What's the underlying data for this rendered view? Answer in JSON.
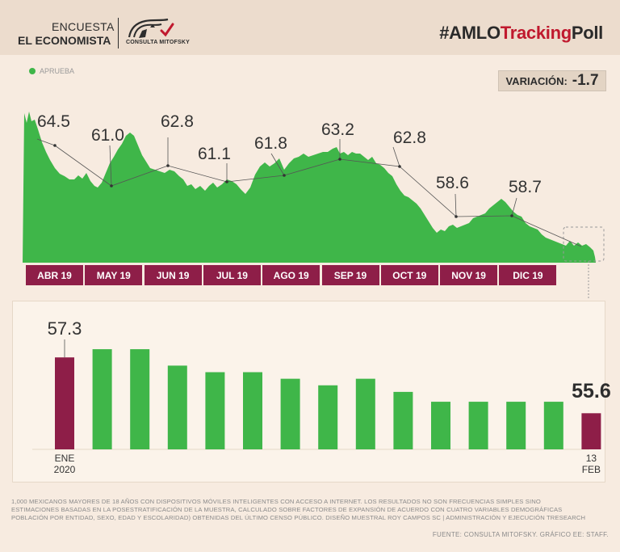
{
  "header": {
    "survey_top": "ENCUESTA",
    "survey_bottom": "EL ECONOMISTA",
    "logo_text": "CONSULTA MITOFSKY",
    "hashtag_prefix": "#AMLO",
    "hashtag_red": "Tracking",
    "hashtag_suffix": "Poll"
  },
  "legend": {
    "label": "APRUEBA",
    "color": "#3fb649"
  },
  "variation": {
    "label": "VARIACIÓN:",
    "value": "-1.7"
  },
  "colors": {
    "green": "#3fb649",
    "maroon": "#8e1e48",
    "background": "#f7ebe0"
  },
  "chart_data": [
    {
      "type": "area",
      "series": [
        {
          "name": "APRUEBA",
          "x": [
            "ABR 19",
            "MAY 19",
            "JUN 19",
            "JUL 19",
            "AGO 19",
            "SEP 19",
            "OCT 19",
            "NOV 19",
            "DIC 19"
          ],
          "values": [
            64.5,
            61.0,
            62.8,
            61.1,
            61.8,
            63.2,
            62.8,
            58.6,
            58.7
          ]
        }
      ],
      "annotations": [
        "64.5",
        "61.0",
        "62.8",
        "61.1",
        "61.8",
        "63.2",
        "62.8",
        "58.6",
        "58.7"
      ],
      "month_labels": [
        "ABR 19",
        "MAY 19",
        "JUN 19",
        "JUL 19",
        "AGO 19",
        "SEP 19",
        "OCT 19",
        "NOV 19",
        "DIC 19"
      ],
      "grid": false
    },
    {
      "type": "bar",
      "categories": [
        "ENE 2020",
        "",
        "",
        "",
        "",
        "",
        "",
        "",
        "",
        "",
        "",
        "",
        "",
        "",
        "13 FEB"
      ],
      "values": [
        57.3,
        57.55,
        57.55,
        57.05,
        56.85,
        56.85,
        56.65,
        56.45,
        56.65,
        56.25,
        55.95,
        55.95,
        55.95,
        55.95,
        55.6
      ],
      "highlight_labels": {
        "first": "57.3",
        "last": "55.6"
      },
      "x_labels": {
        "first_line1": "ENE",
        "first_line2": "2020",
        "last_line1": "13",
        "last_line2": "FEB"
      },
      "grid": false
    }
  ],
  "footnote": "1,000 MEXICANOS MAYORES DE 18 AÑOS CON DISPOSITIVOS MÓVILES INTELIGENTES CON ACCESO A INTERNET. LOS RESULTADOS NO SON FRECUENCIAS SIMPLES SINO ESTIMACIONES BASADAS EN LA POSESTRATIFICACIÓN DE LA MUESTRA, CALCULADO SOBRE FACTORES DE EXPANSIÓN DE ACUERDO CON CUATRO VARIABLES DEMOGRÁFICAS POBLACIÓN POR ENTIDAD, SEXO, EDAD Y ESCOLARIDAD) OBTENIDAS DEL ÚLTIMO CENSO PÚBLICO. DISEÑO MUESTRAL ROY CAMPOS SC | ADMINISTRACIÓN Y EJECUCIÓN TRESEARCH",
  "source": "FUENTE: CONSULTA MITOFSKY. GRÁFICO EE: STAFF."
}
